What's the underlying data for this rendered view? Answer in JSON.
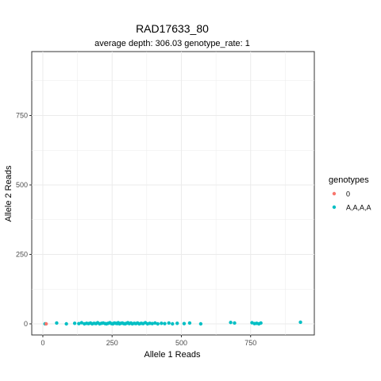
{
  "chart_data": {
    "type": "scatter",
    "title": "RAD17633_80",
    "subtitle": "average depth:  306.03  genotype_rate:  1",
    "xlabel": "Allele 1 Reads",
    "ylabel": "Allele 2 Reads",
    "xlim": [
      -40,
      980
    ],
    "ylim": [
      -40,
      980
    ],
    "xticks": [
      0,
      250,
      500,
      750
    ],
    "yticks": [
      0,
      250,
      500,
      750
    ],
    "xtick_labels": [
      "0",
      "250",
      "500",
      "750"
    ],
    "ytick_labels": [
      "0",
      "250",
      "500",
      "750"
    ],
    "grid": true,
    "legend": {
      "title": "genotypes",
      "placement": "right",
      "entries": [
        {
          "label": "0",
          "color": "#F8766D"
        },
        {
          "label": "A,A,A,A",
          "color": "#00BFC4"
        }
      ]
    },
    "series": [
      {
        "name": "0",
        "color": "#F8766D",
        "points": [
          [
            12,
            0
          ]
        ]
      },
      {
        "name": "A,A,A,A",
        "color": "#00BFC4",
        "points": [
          [
            8,
            0
          ],
          [
            50,
            3
          ],
          [
            85,
            0
          ],
          [
            115,
            2
          ],
          [
            130,
            1
          ],
          [
            140,
            4
          ],
          [
            150,
            0
          ],
          [
            158,
            2
          ],
          [
            165,
            1
          ],
          [
            172,
            3
          ],
          [
            178,
            0
          ],
          [
            185,
            2
          ],
          [
            192,
            1
          ],
          [
            198,
            4
          ],
          [
            205,
            0
          ],
          [
            212,
            2
          ],
          [
            218,
            3
          ],
          [
            225,
            1
          ],
          [
            230,
            0
          ],
          [
            236,
            2
          ],
          [
            242,
            4
          ],
          [
            248,
            1
          ],
          [
            253,
            0
          ],
          [
            258,
            3
          ],
          [
            263,
            2
          ],
          [
            268,
            1
          ],
          [
            272,
            4
          ],
          [
            277,
            0
          ],
          [
            282,
            2
          ],
          [
            287,
            3
          ],
          [
            292,
            1
          ],
          [
            297,
            0
          ],
          [
            302,
            2
          ],
          [
            307,
            4
          ],
          [
            312,
            1
          ],
          [
            318,
            3
          ],
          [
            323,
            0
          ],
          [
            330,
            2
          ],
          [
            336,
            1
          ],
          [
            342,
            3
          ],
          [
            348,
            0
          ],
          [
            355,
            2
          ],
          [
            362,
            1
          ],
          [
            370,
            4
          ],
          [
            378,
            0
          ],
          [
            386,
            2
          ],
          [
            395,
            1
          ],
          [
            405,
            3
          ],
          [
            415,
            0
          ],
          [
            428,
            2
          ],
          [
            440,
            1
          ],
          [
            455,
            3
          ],
          [
            468,
            0
          ],
          [
            485,
            2
          ],
          [
            510,
            1
          ],
          [
            530,
            3
          ],
          [
            570,
            0
          ],
          [
            678,
            5
          ],
          [
            692,
            3
          ],
          [
            755,
            4
          ],
          [
            764,
            1
          ],
          [
            772,
            2
          ],
          [
            780,
            0
          ],
          [
            787,
            3
          ],
          [
            930,
            6
          ]
        ]
      }
    ]
  }
}
